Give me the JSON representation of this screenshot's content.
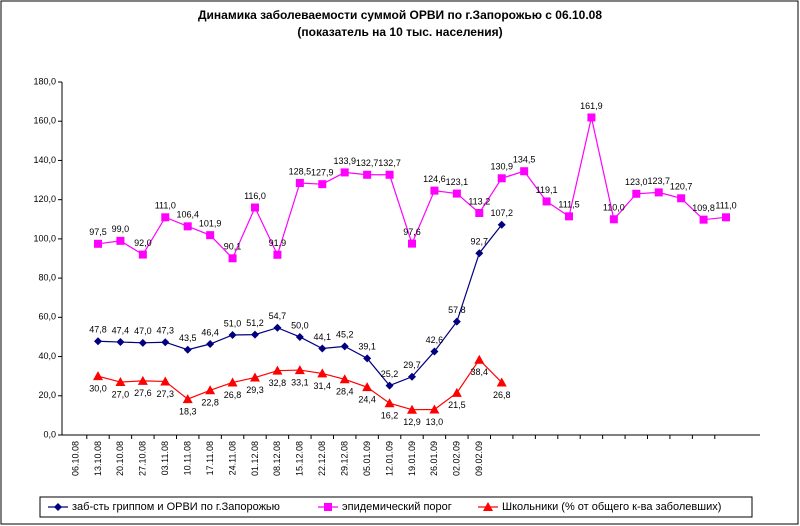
{
  "chart_data": {
    "type": "line",
    "title": "Динамика заболеваемости суммой ОРВИ по г.Запорожью с 06.10.08",
    "subtitle": "(показатель на 10 тыс. населения)",
    "categories": [
      "06.10.08",
      "13.10.08",
      "20.10.08",
      "27.10.08",
      "03.11.08",
      "10.11.08",
      "17.11.08",
      "24.11.08",
      "01.12.08",
      "08.12.08",
      "15.12.08",
      "22.12.08",
      "29.12.08",
      "05.01.09",
      "12.01.09",
      "19.01.09",
      "26.01.09",
      "02.02.09",
      "09.02.09",
      null,
      null,
      null,
      null,
      null,
      null,
      null,
      null,
      null,
      null
    ],
    "series": [
      {
        "name": "заб-сть гриппом и ОРВИ по г.Запорожью",
        "color": "#000080",
        "marker": "diamond",
        "values": [
          47.8,
          47.4,
          47.0,
          47.3,
          43.5,
          46.4,
          51.0,
          51.2,
          54.7,
          50.0,
          44.1,
          45.2,
          39.1,
          25.2,
          29.7,
          42.6,
          57.8,
          92.7,
          107.2,
          null,
          null,
          null,
          null,
          null,
          null,
          null,
          null,
          null,
          null
        ],
        "value_labels": [
          "47,8",
          "47,4",
          "47,0",
          "47,3",
          "43,5",
          "46,4",
          "51,0",
          "51,2",
          "54,7",
          "50,0",
          "44,1",
          "45,2",
          "39,1",
          "25,2",
          "29,7",
          "42,6",
          "57,8",
          "92,7",
          "107,2",
          null,
          null,
          null,
          null,
          null,
          null,
          null,
          null,
          null,
          null
        ]
      },
      {
        "name": "эпидемический порог",
        "color": "#ff00ff",
        "marker": "square",
        "values": [
          97.5,
          99.0,
          92.0,
          111.0,
          106.4,
          101.9,
          90.1,
          116.0,
          91.9,
          128.5,
          127.9,
          133.9,
          132.7,
          132.7,
          97.6,
          124.6,
          123.1,
          113.2,
          130.9,
          134.5,
          119.1,
          111.5,
          161.9,
          110.0,
          123.0,
          123.7,
          120.7,
          109.8,
          111.0
        ],
        "value_labels": [
          "97,5",
          "99,0",
          "92,0",
          "111,0",
          "106,4",
          "101,9",
          "90,1",
          "116,0",
          "91,9",
          "128,5",
          "127,9",
          "133,9",
          "132,7",
          "132,7",
          "97,6",
          "124,6",
          "123,1",
          "113,2",
          "130,9",
          "134,5",
          "119,1",
          "111,5",
          "161,9",
          "110,0",
          "123,0",
          "123,7",
          "120,7",
          "109,8",
          "111,0"
        ]
      },
      {
        "name": "Школьники (% от общего к-ва заболевших)",
        "color": "#ff0000",
        "marker": "triangle",
        "values": [
          30.0,
          27.0,
          27.6,
          27.3,
          18.3,
          22.8,
          26.8,
          29.3,
          32.8,
          33.1,
          31.4,
          28.4,
          24.4,
          16.2,
          12.9,
          13.0,
          21.5,
          38.4,
          26.8,
          null,
          null,
          null,
          null,
          null,
          null,
          null,
          null,
          null,
          null
        ],
        "value_labels": [
          "30,0",
          "27,0",
          "27,6",
          "27,3",
          "18,3",
          "22,8",
          "26,8",
          "29,3",
          "32,8",
          "33,1",
          "31,4",
          "28,4",
          "24,4",
          "16,2",
          "12,9",
          "13,0",
          "21,5",
          "38,4",
          "26,8",
          null,
          null,
          null,
          null,
          null,
          null,
          null,
          null,
          null,
          null
        ]
      }
    ],
    "ylim": [
      0,
      180
    ],
    "yticks": [
      {
        "value": 0,
        "label": "0,0"
      },
      {
        "value": 20,
        "label": "20,0"
      },
      {
        "value": 40,
        "label": "40,0"
      },
      {
        "value": 60,
        "label": "60,0"
      },
      {
        "value": 80,
        "label": "80,0"
      },
      {
        "value": 100,
        "label": "100,0"
      },
      {
        "value": 120,
        "label": "120,0"
      },
      {
        "value": 140,
        "label": "140,0"
      },
      {
        "value": 160,
        "label": "160,0"
      },
      {
        "value": 180,
        "label": "180,0"
      }
    ],
    "legend": "bottom"
  }
}
